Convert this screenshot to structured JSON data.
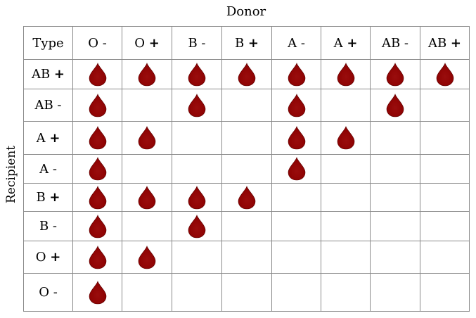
{
  "donor_label": "Donor",
  "recipient_label": "Recipient",
  "corner_label": "Type",
  "icon": "blood-drop-icon",
  "drop_color": "#8b0000",
  "donors": [
    {
      "name": "O -"
    },
    {
      "name": "O +"
    },
    {
      "name": "B -"
    },
    {
      "name": "B +"
    },
    {
      "name": "A -"
    },
    {
      "name": "A +"
    },
    {
      "name": "AB -"
    },
    {
      "name": "AB +"
    }
  ],
  "recipients": [
    {
      "name": "AB +",
      "compatible": [
        1,
        1,
        1,
        1,
        1,
        1,
        1,
        1
      ]
    },
    {
      "name": "AB -",
      "compatible": [
        1,
        0,
        1,
        0,
        1,
        0,
        1,
        0
      ]
    },
    {
      "name": "A +",
      "compatible": [
        1,
        1,
        0,
        0,
        1,
        1,
        0,
        0
      ]
    },
    {
      "name": "A -",
      "compatible": [
        1,
        0,
        0,
        0,
        1,
        0,
        0,
        0
      ]
    },
    {
      "name": "B +",
      "compatible": [
        1,
        1,
        1,
        1,
        0,
        0,
        0,
        0
      ]
    },
    {
      "name": "B -",
      "compatible": [
        1,
        0,
        1,
        0,
        0,
        0,
        0,
        0
      ]
    },
    {
      "name": "O +",
      "compatible": [
        1,
        1,
        0,
        0,
        0,
        0,
        0,
        0
      ]
    },
    {
      "name": "O -",
      "compatible": [
        1,
        0,
        0,
        0,
        0,
        0,
        0,
        0
      ]
    }
  ]
}
